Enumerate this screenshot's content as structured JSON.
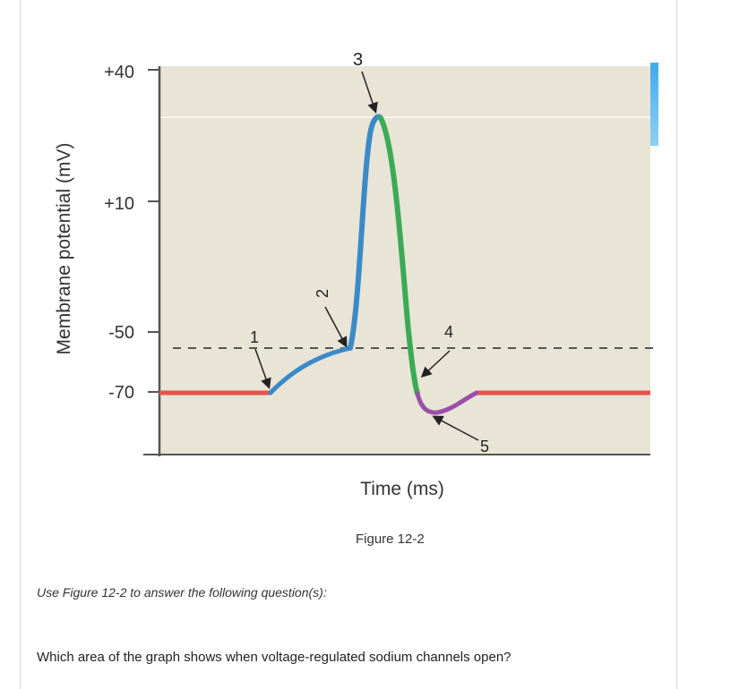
{
  "figure": {
    "caption": "Figure 12-2",
    "ylabel": "Membrane potential (mV)",
    "xlabel": "Time (ms)",
    "y_ticks": [
      "+40",
      "+10",
      "-50",
      "-70"
    ],
    "markers": [
      "1",
      "2",
      "3",
      "4",
      "5"
    ],
    "colors": {
      "panel": "#e8e4d6",
      "resting": "#e8524a",
      "depolarization": "#3b8ac8",
      "repolarization": "#3aab54",
      "hyperpolarization": "#9a4fa8",
      "threshold_line": "#555555",
      "axis": "#555555"
    }
  },
  "instruction": "Use Figure 12-2 to answer the following question(s):",
  "question": "Which area of the graph shows when voltage-regulated sodium channels open?"
}
